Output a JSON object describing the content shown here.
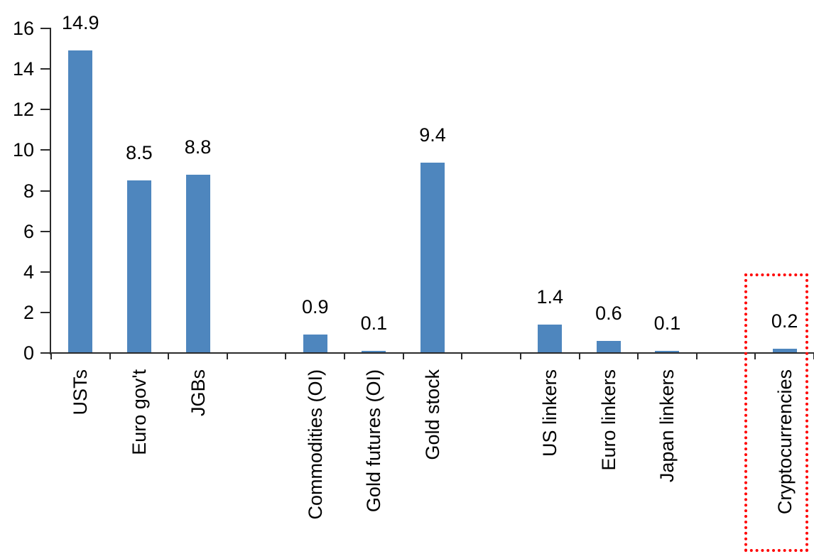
{
  "chart_data": {
    "type": "bar",
    "title": "",
    "xlabel": "",
    "ylabel": "",
    "categories": [
      "USTs",
      "Euro gov't",
      "JGBs",
      "Commodities (OI)",
      "Gold futures (OI)",
      "Gold stock",
      "US linkers",
      "Euro linkers",
      "Japan linkers",
      "Cryptocurrencies"
    ],
    "values": [
      14.9,
      8.5,
      8.8,
      0.9,
      0.1,
      9.4,
      1.4,
      0.6,
      0.1,
      0.2
    ],
    "data_labels": [
      "14.9",
      "8.5",
      "8.8",
      "0.9",
      "0.1",
      "9.4",
      "1.4",
      "0.6",
      "0.1",
      "0.2"
    ],
    "slot_index": [
      0,
      1,
      2,
      4,
      5,
      6,
      8,
      9,
      10,
      12
    ],
    "total_slots": 13,
    "group_gaps_after": [
      "JGBs",
      "Gold stock",
      "Japan linkers"
    ],
    "ylim": [
      0,
      16
    ],
    "yticks": [
      0,
      2,
      4,
      6,
      8,
      10,
      12,
      14,
      16
    ],
    "grid": false,
    "legend": "none",
    "bar_color": "#4E86BE",
    "axis_color": "#2b2b2b",
    "text_color": "#000000",
    "highlight": {
      "target": "Cryptocurrencies",
      "shape": "dotted-rectangle",
      "color": "#FF0000"
    }
  }
}
